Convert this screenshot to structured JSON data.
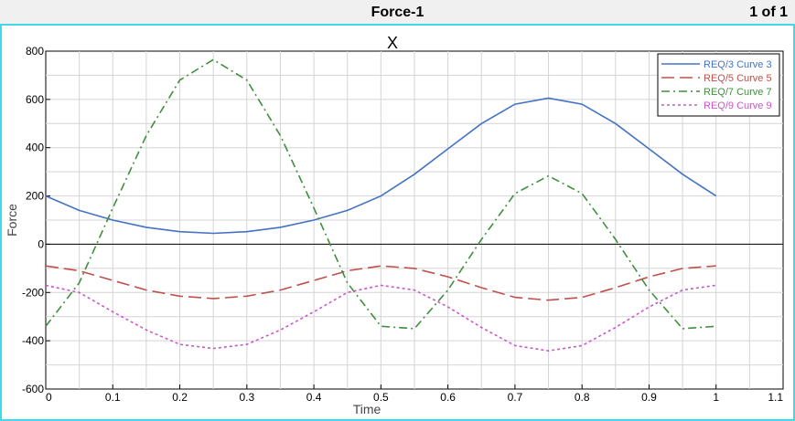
{
  "header": {
    "title": "Force-1",
    "page_indicator": "1 of 1"
  },
  "chart_data": {
    "type": "line",
    "title": "X",
    "xlabel": "Time",
    "ylabel": "Force",
    "xlim": [
      0,
      1.1
    ],
    "ylim": [
      -600,
      800
    ],
    "xticks": [
      0,
      0.1,
      0.2,
      0.3,
      0.4,
      0.5,
      0.6,
      0.7,
      0.8,
      0.9,
      1,
      1.1
    ],
    "xtick_labels": [
      "0",
      "0.1",
      "0.2",
      "0.3",
      "0.4",
      "0.5",
      "0.6",
      "0.7",
      "0.8",
      "0.9",
      "1",
      "1.1"
    ],
    "yticks": [
      -600,
      -400,
      -200,
      0,
      200,
      400,
      600,
      800
    ],
    "ytick_labels": [
      "-600",
      "-400",
      "-200",
      "0",
      "200",
      "400",
      "600",
      "800"
    ],
    "grid": true,
    "legend_position": "top-right",
    "x": [
      0,
      0.05,
      0.1,
      0.15,
      0.2,
      0.25,
      0.3,
      0.35,
      0.4,
      0.45,
      0.5,
      0.55,
      0.6,
      0.65,
      0.7,
      0.75,
      0.8,
      0.85,
      0.9,
      0.95,
      1
    ],
    "series": [
      {
        "name": "REQ/3 Curve 3",
        "color": "#4472c4",
        "style": "solid",
        "values": [
          200,
          140,
          100,
          70,
          52,
          45,
          52,
          70,
          100,
          140,
          200,
          290,
          395,
          500,
          580,
          605,
          580,
          500,
          395,
          290,
          200
        ]
      },
      {
        "name": "REQ/5 Curve 5",
        "color": "#c0504d",
        "style": "dashed",
        "values": [
          -90,
          -110,
          -150,
          -190,
          -215,
          -225,
          -215,
          -190,
          -150,
          -110,
          -90,
          -100,
          -135,
          -180,
          -220,
          -232,
          -220,
          -180,
          -135,
          -100,
          -90
        ]
      },
      {
        "name": "REQ/7 Curve 7",
        "color": "#3f8f3f",
        "style": "dashdot",
        "values": [
          -340,
          -160,
          150,
          450,
          680,
          765,
          680,
          450,
          150,
          -160,
          -340,
          -350,
          -190,
          20,
          210,
          283,
          210,
          20,
          -190,
          -350,
          -340
        ]
      },
      {
        "name": "REQ/9 Curve 9",
        "color": "#cc55cc",
        "style": "dotted",
        "values": [
          -170,
          -200,
          -280,
          -355,
          -415,
          -432,
          -415,
          -355,
          -280,
          -200,
          -170,
          -190,
          -260,
          -345,
          -420,
          -442,
          -420,
          -345,
          -260,
          -190,
          -170
        ]
      }
    ]
  }
}
